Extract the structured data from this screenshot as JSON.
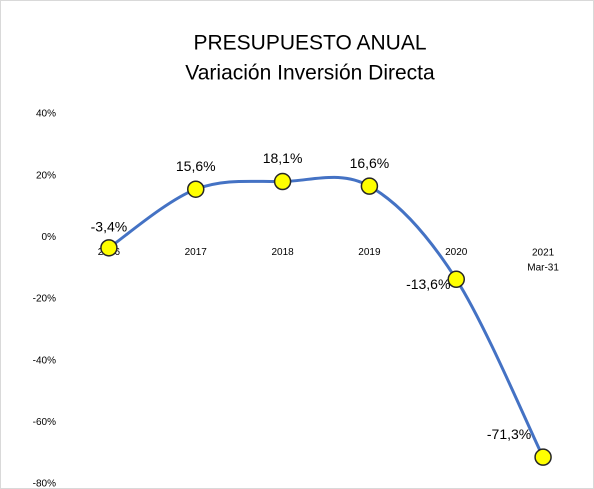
{
  "chart_data": {
    "type": "line",
    "title": "PRESUPUESTO ANUAL",
    "subtitle": "Variación Inversión Directa",
    "categories": [
      "2016",
      "2017",
      "2018",
      "2019",
      "2020",
      "2021\nMar-31"
    ],
    "series": [
      {
        "name": "Variación Inversión Directa",
        "color": "#4472c4",
        "values": [
          -3.4,
          15.6,
          18.1,
          16.6,
          -13.6,
          -71.3
        ],
        "value_labels": [
          "-3,4%",
          "15,6%",
          "18,1%",
          "16,6%",
          "-13,6%",
          "-71,3%"
        ]
      }
    ],
    "marker_color": "#ffff00",
    "ylim": [
      -80,
      40
    ],
    "yticks": [
      {
        "value": -80,
        "label": "-80%"
      },
      {
        "value": -60,
        "label": "-60%"
      },
      {
        "value": -40,
        "label": "-40%"
      },
      {
        "value": -20,
        "label": "-20%"
      },
      {
        "value": 0,
        "label": "0%"
      },
      {
        "value": 20,
        "label": "20%"
      },
      {
        "value": 40,
        "label": "40%"
      }
    ],
    "grid": false
  }
}
